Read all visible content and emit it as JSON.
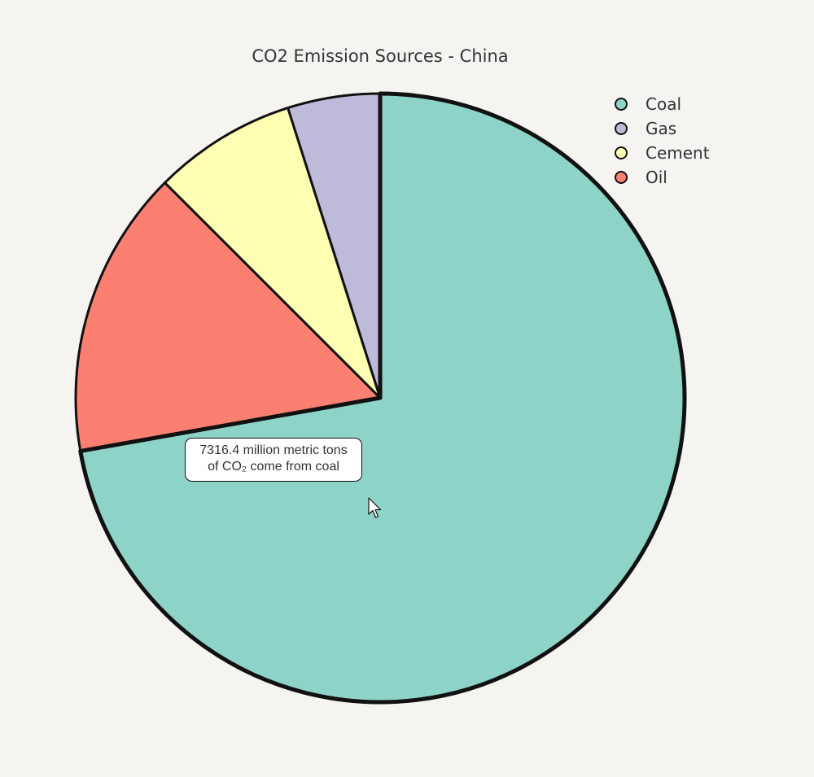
{
  "chart_data": {
    "type": "pie",
    "title": "CO2 Emission Sources - China",
    "slices": [
      {
        "label": "Coal",
        "value": 72.2,
        "color": "#8dd3c7"
      },
      {
        "label": "Gas",
        "value": 4.9,
        "color": "#bebada"
      },
      {
        "label": "Cement",
        "value": 7.6,
        "color": "#ffffb3"
      },
      {
        "label": "Oil",
        "value": 15.3,
        "color": "#fb8072"
      }
    ],
    "slice_order": [
      "Coal",
      "Oil",
      "Cement",
      "Gas"
    ],
    "highlighted": "Coal",
    "legend": {
      "placement": "top-right",
      "entries": [
        "Coal",
        "Gas",
        "Cement",
        "Oil"
      ]
    },
    "tooltip": {
      "line1": "7316.4 million metric tons",
      "line2": "of CO₂ come from coal"
    }
  }
}
